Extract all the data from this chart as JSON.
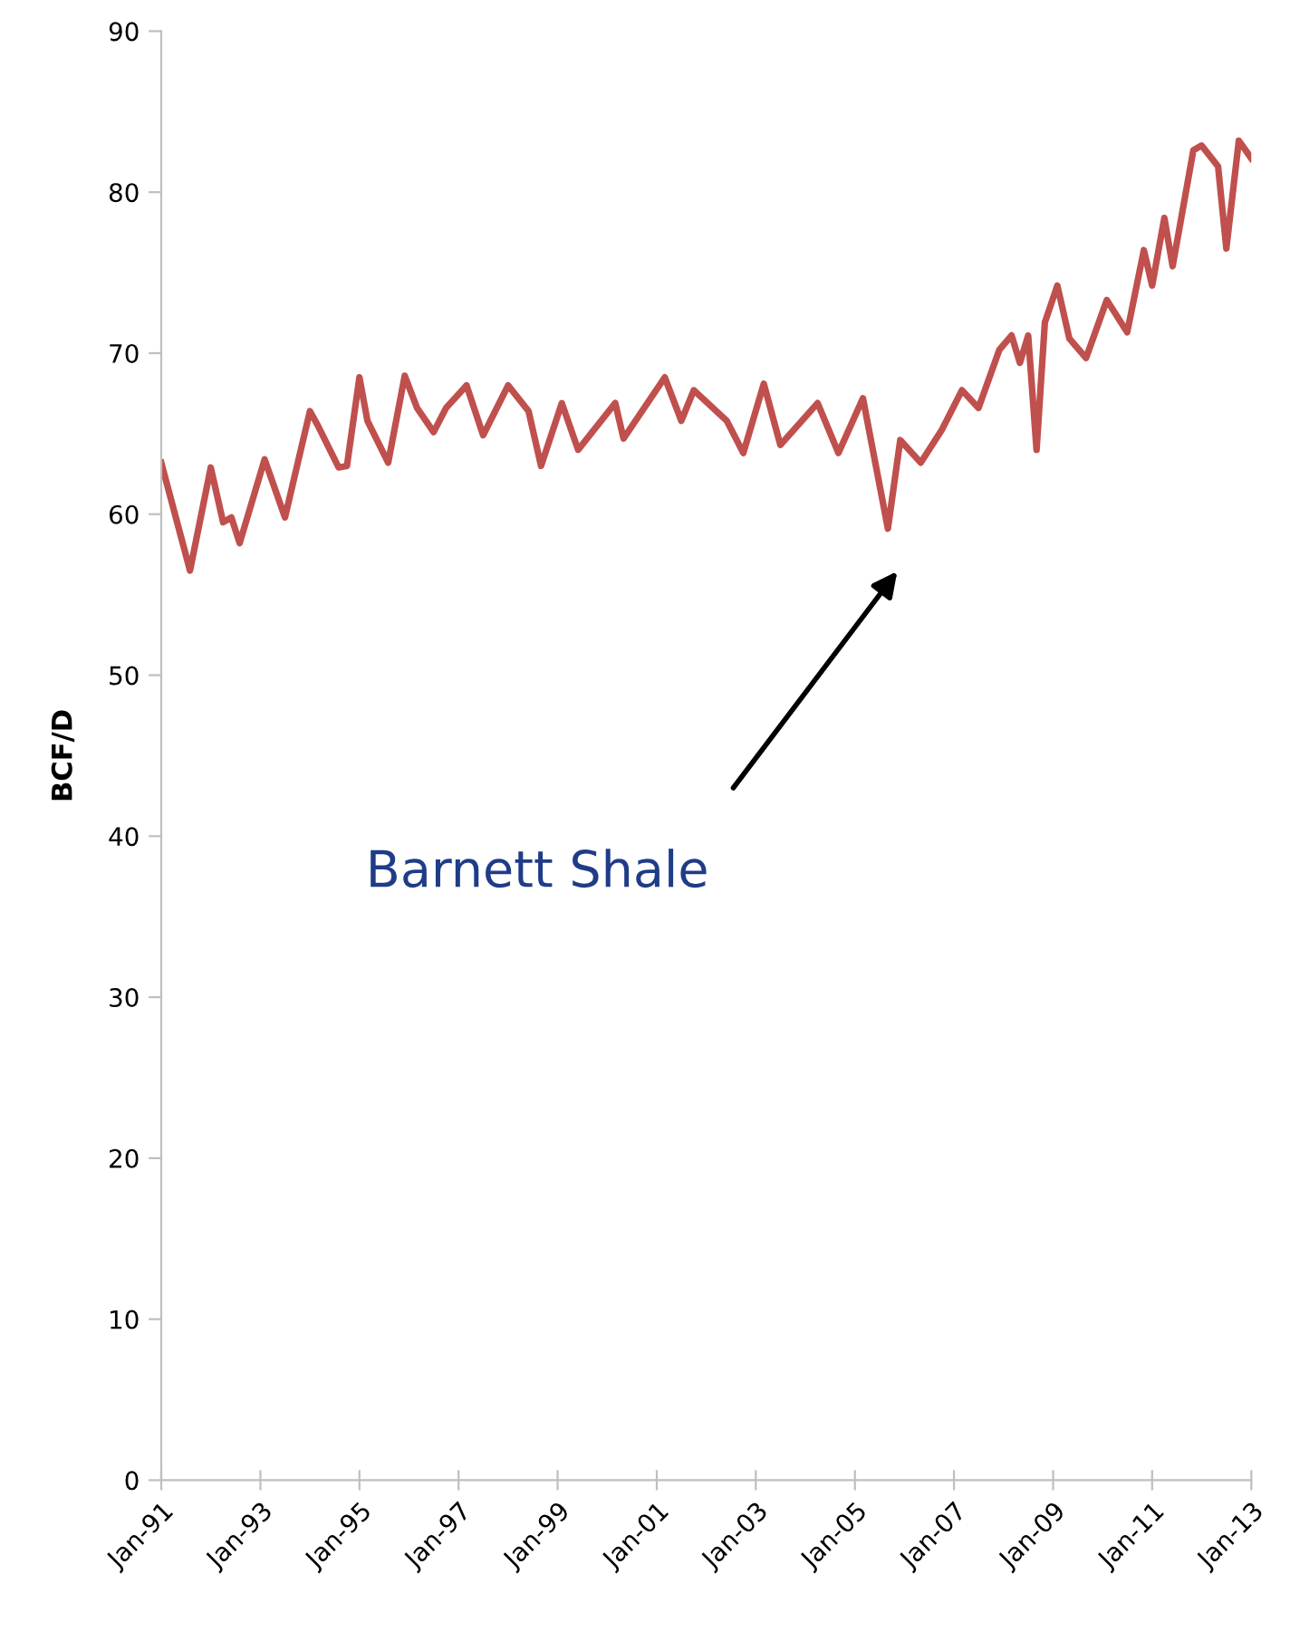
{
  "chart_data": {
    "type": "line",
    "ylabel": "BCF/D",
    "x": [
      "1991-01",
      "1991-08",
      "1992-01",
      "1992-04",
      "1992-06",
      "1992-08",
      "1993-02",
      "1993-07",
      "1994-01",
      "1994-03",
      "1994-08",
      "1994-10",
      "1995-01",
      "1995-03",
      "1995-08",
      "1995-12",
      "1996-03",
      "1996-07",
      "1996-10",
      "1997-03",
      "1997-07",
      "1998-01",
      "1998-06",
      "1998-09",
      "1999-02",
      "1999-06",
      "2000-03",
      "2000-05",
      "2001-03",
      "2001-07",
      "2001-10",
      "2002-06",
      "2002-10",
      "2003-03",
      "2003-07",
      "2004-04",
      "2004-09",
      "2005-03",
      "2005-09",
      "2005-12",
      "2006-05",
      "2006-10",
      "2007-03",
      "2007-07",
      "2007-12",
      "2008-03",
      "2008-05",
      "2008-07",
      "2008-09",
      "2008-11",
      "2009-02",
      "2009-05",
      "2009-09",
      "2010-02",
      "2010-07",
      "2010-11",
      "2011-01",
      "2011-04",
      "2011-06",
      "2011-11",
      "2012-01",
      "2012-05",
      "2012-07",
      "2012-10",
      "2013-01"
    ],
    "series": [
      {
        "color": "#c0504d",
        "values": [
          63.2,
          56.5,
          62.9,
          59.5,
          59.8,
          58.2,
          63.4,
          59.8,
          66.4,
          65.5,
          62.9,
          63.0,
          68.5,
          65.8,
          63.2,
          68.6,
          66.6,
          65.1,
          66.6,
          68.0,
          64.9,
          68.0,
          66.4,
          63.0,
          66.9,
          64.0,
          66.9,
          64.7,
          68.5,
          65.8,
          67.7,
          65.8,
          63.8,
          68.1,
          64.3,
          66.9,
          63.8,
          67.2,
          59.1,
          64.6,
          63.2,
          65.2,
          67.7,
          66.6,
          70.2,
          71.1,
          69.4,
          71.1,
          64.0,
          71.9,
          74.2,
          70.9,
          69.7,
          73.3,
          71.3,
          76.4,
          74.2,
          78.4,
          75.4,
          82.6,
          82.9,
          81.6,
          76.5,
          83.2,
          82.1
        ]
      }
    ],
    "xlim": [
      "1991-01-01",
      "2013-01-01"
    ],
    "xticks": [
      {
        "value": "1991-01-01",
        "label": "Jan-91"
      },
      {
        "value": "1993-01-01",
        "label": "Jan-93"
      },
      {
        "value": "1995-01-01",
        "label": "Jan-95"
      },
      {
        "value": "1997-01-01",
        "label": "Jan-97"
      },
      {
        "value": "1999-01-01",
        "label": "Jan-99"
      },
      {
        "value": "2001-01-01",
        "label": "Jan-01"
      },
      {
        "value": "2003-01-01",
        "label": "Jan-03"
      },
      {
        "value": "2005-01-01",
        "label": "Jan-05"
      },
      {
        "value": "2007-01-01",
        "label": "Jan-07"
      },
      {
        "value": "2009-01-01",
        "label": "Jan-09"
      },
      {
        "value": "2011-01-01",
        "label": "Jan-11"
      },
      {
        "value": "2013-01-01",
        "label": "Jan-13"
      }
    ],
    "ylim": [
      0,
      90
    ],
    "yticks": [
      0,
      10,
      20,
      30,
      40,
      50,
      60,
      70,
      80,
      90
    ],
    "grid": false,
    "legend": false,
    "marker": "none",
    "line_style": "solid",
    "annotations": [
      "Barnett Shale"
    ]
  }
}
